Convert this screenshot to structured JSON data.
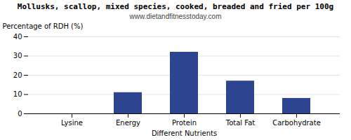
{
  "chart_data": {
    "type": "bar",
    "title": "Mollusks, scallop, mixed species, cooked, breaded and fried per 100g",
    "subtitle": "www.dietandfitnesstoday.com",
    "xlabel": "Different Nutrients",
    "ylabel": "Percentage of RDH (%)",
    "categories": [
      "Lysine",
      "Energy",
      "Protein",
      "Total Fat",
      "Carbohydrate"
    ],
    "values": [
      0,
      11,
      32,
      17,
      8
    ],
    "color": "#2d4490",
    "ylim": [
      0,
      40
    ],
    "yticks": [
      0,
      10,
      20,
      30,
      40
    ],
    "grid": true
  }
}
